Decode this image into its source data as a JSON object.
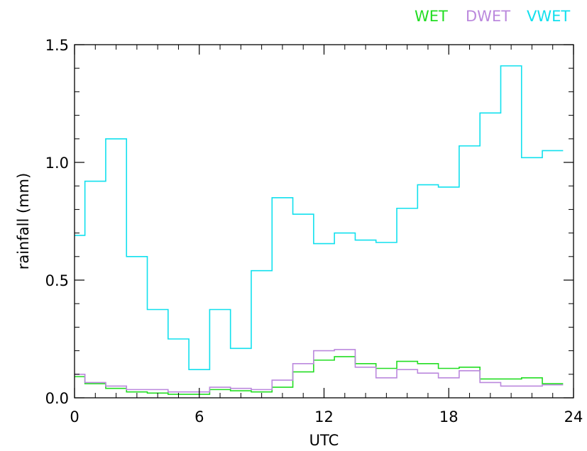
{
  "chart_data": {
    "type": "line",
    "title": "",
    "xlabel": "UTC",
    "ylabel": "rainfall (mm)",
    "xlim": [
      0,
      24
    ],
    "ylim": [
      0,
      1.5
    ],
    "x_ticks": [
      0,
      6,
      12,
      18,
      24
    ],
    "x_tick_labels": [
      "0",
      "6",
      "12",
      "18",
      "24"
    ],
    "y_ticks": [
      0.0,
      0.5,
      1.0,
      1.5
    ],
    "y_tick_labels": [
      "0.0",
      "0.5",
      "1.0",
      "1.5"
    ],
    "grid": false,
    "legend_position": "top-right",
    "x": [
      0,
      1,
      2,
      3,
      4,
      5,
      6,
      7,
      8,
      9,
      10,
      11,
      12,
      13,
      14,
      15,
      16,
      17,
      18,
      19,
      20,
      21,
      22,
      23
    ],
    "series": [
      {
        "name": "WET",
        "color": "#22dd22",
        "values": [
          0.09,
          0.06,
          0.04,
          0.025,
          0.02,
          0.015,
          0.015,
          0.035,
          0.03,
          0.025,
          0.045,
          0.11,
          0.16,
          0.175,
          0.145,
          0.125,
          0.155,
          0.145,
          0.125,
          0.13,
          0.08,
          0.08,
          0.085,
          0.06
        ]
      },
      {
        "name": "DWET",
        "color": "#bb88dd",
        "values": [
          0.1,
          0.065,
          0.05,
          0.035,
          0.035,
          0.025,
          0.025,
          0.045,
          0.04,
          0.035,
          0.075,
          0.145,
          0.2,
          0.205,
          0.13,
          0.085,
          0.12,
          0.105,
          0.085,
          0.115,
          0.065,
          0.05,
          0.05,
          0.055
        ]
      },
      {
        "name": "VWET",
        "color": "#11e0ee",
        "values": [
          0.69,
          0.92,
          1.1,
          0.6,
          0.375,
          0.25,
          0.12,
          0.375,
          0.21,
          0.54,
          0.85,
          0.78,
          0.655,
          0.7,
          0.67,
          0.66,
          0.805,
          0.905,
          0.895,
          1.07,
          1.21,
          1.41,
          1.02,
          1.05
        ]
      }
    ]
  }
}
